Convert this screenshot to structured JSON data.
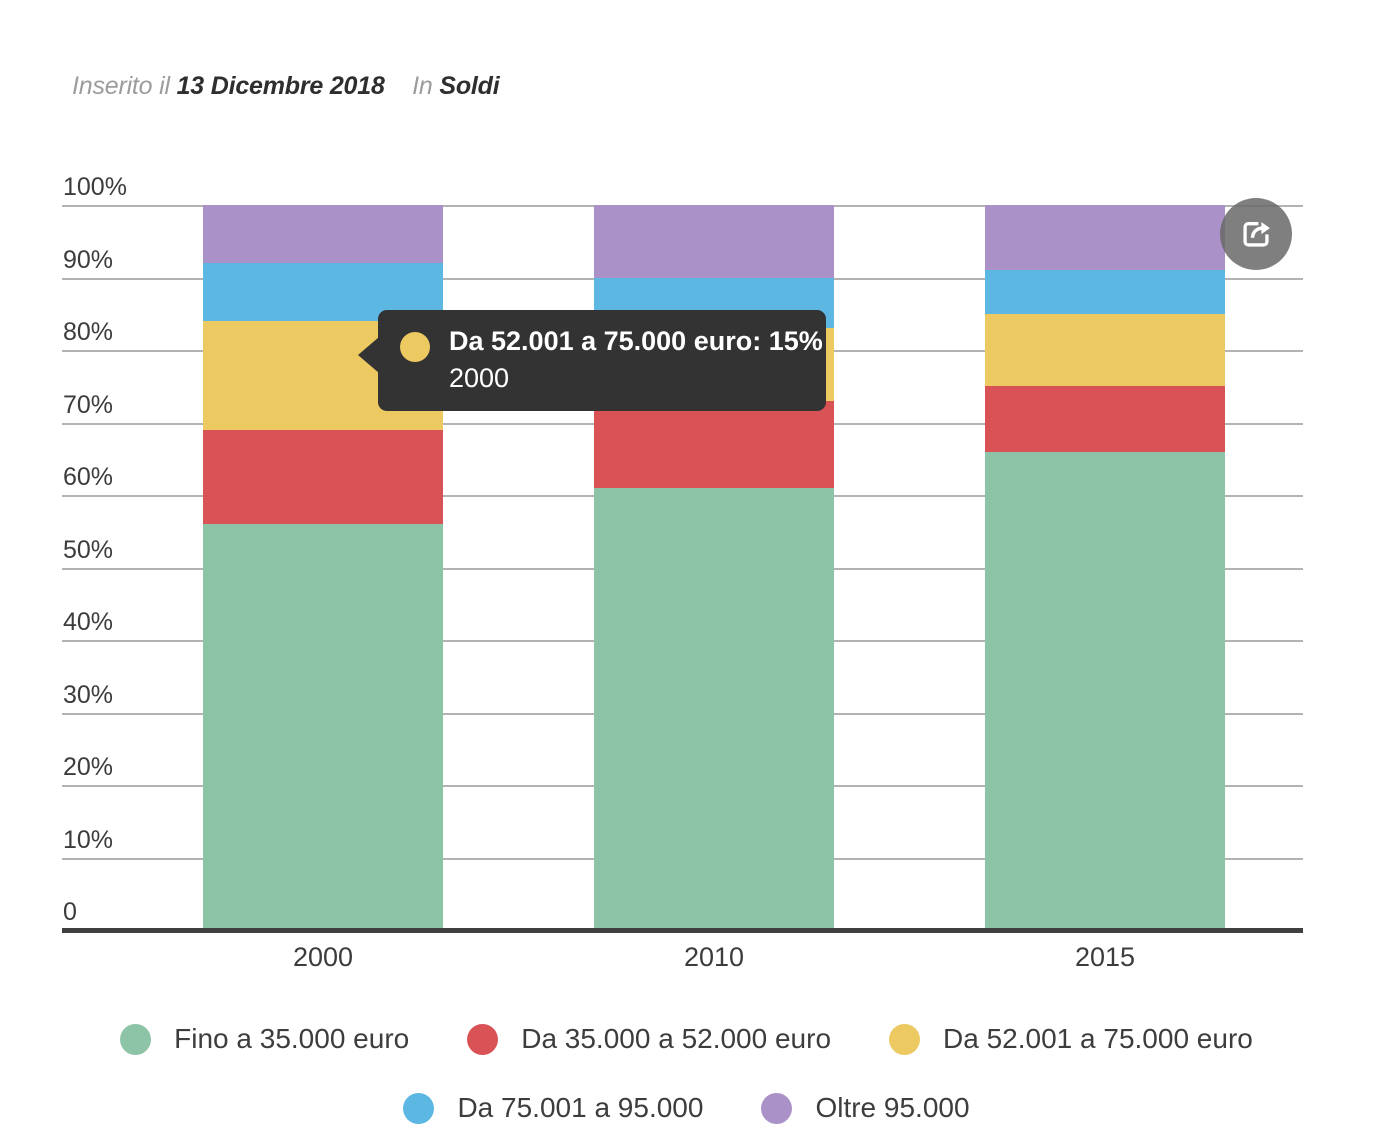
{
  "header": {
    "posted_prefix": "Inserito il",
    "date": "13 Dicembre 2018",
    "in_label": "In",
    "category": "Soldi"
  },
  "tooltip": {
    "text": "Da 52.001 a 75.000 euro: 15%",
    "category": "2000",
    "marker_color": "#edc962",
    "background": "#333333"
  },
  "share_button": {
    "icon": "share-icon"
  },
  "chart_data": {
    "type": "bar",
    "stacked": true,
    "unit": "%",
    "categories": [
      "2000",
      "2010",
      "2015"
    ],
    "series": [
      {
        "name": "Fino a 35.000 euro",
        "color": "#8dc3a7",
        "values": [
          56,
          61,
          66
        ]
      },
      {
        "name": "Da 35.000 a 52.000 euro",
        "color": "#d95356",
        "values": [
          13,
          12,
          9
        ]
      },
      {
        "name": "Da 52.001 a 75.000 euro",
        "color": "#edc962",
        "values": [
          15,
          10,
          10
        ]
      },
      {
        "name": "Da 75.001 a 95.000",
        "color": "#5cb7e2",
        "values": [
          8,
          7,
          6
        ]
      },
      {
        "name": "Oltre 95.000",
        "color": "#aa92c8",
        "values": [
          8,
          10,
          9
        ]
      }
    ],
    "title": "",
    "xlabel": "",
    "ylabel": "",
    "ylim": [
      0,
      100
    ],
    "y_ticks": [
      "100%",
      "90%",
      "80%",
      "70%",
      "60%",
      "50%",
      "40%",
      "30%",
      "20%",
      "10%",
      "0"
    ],
    "grid": true,
    "grid_color": "#b3b3b3",
    "axis_color": "#3f3f3f",
    "legend_position": "bottom",
    "legend_rows": [
      3,
      2
    ]
  }
}
